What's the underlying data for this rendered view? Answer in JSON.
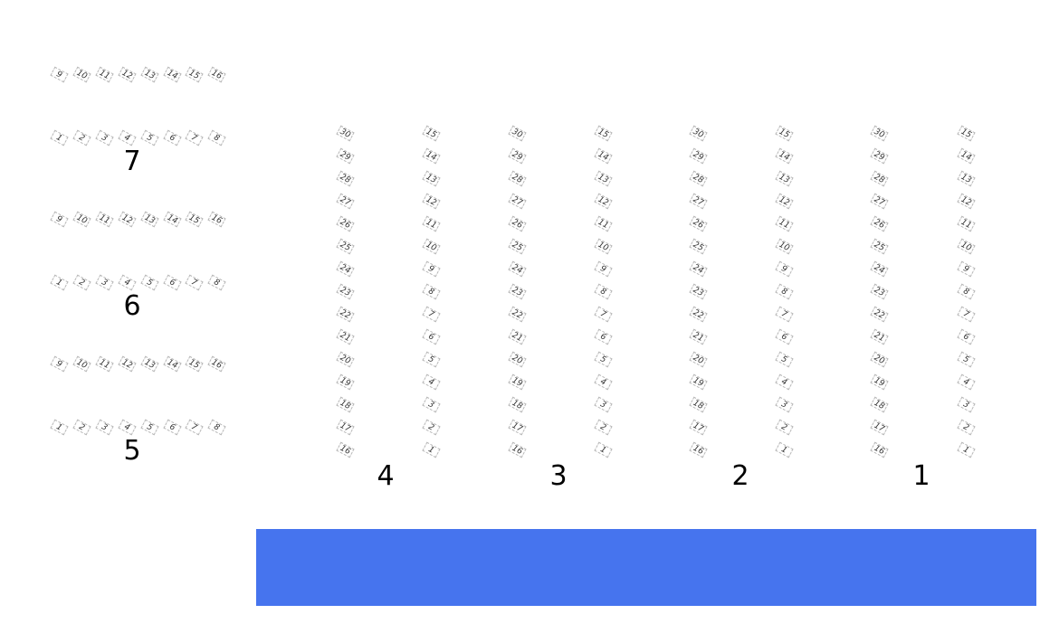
{
  "stage": {
    "color": "#4674EE"
  },
  "left_sections": [
    {
      "label": "7",
      "top_row": [
        "9",
        "10",
        "11",
        "12",
        "13",
        "14",
        "15",
        "16"
      ],
      "bottom_row": [
        "1",
        "2",
        "3",
        "4",
        "5",
        "6",
        "7",
        "8"
      ]
    },
    {
      "label": "6",
      "top_row": [
        "9",
        "10",
        "11",
        "12",
        "13",
        "14",
        "15",
        "16"
      ],
      "bottom_row": [
        "1",
        "2",
        "3",
        "4",
        "5",
        "6",
        "7",
        "8"
      ]
    },
    {
      "label": "5",
      "top_row": [
        "9",
        "10",
        "11",
        "12",
        "13",
        "14",
        "15",
        "16"
      ],
      "bottom_row": [
        "1",
        "2",
        "3",
        "4",
        "5",
        "6",
        "7",
        "8"
      ]
    }
  ],
  "right_sections": [
    {
      "label": "4",
      "left_column": [
        "30",
        "29",
        "28",
        "27",
        "26",
        "25",
        "24",
        "23",
        "22",
        "21",
        "20",
        "19",
        "18",
        "17",
        "16"
      ],
      "right_column": [
        "15",
        "14",
        "13",
        "12",
        "11",
        "10",
        "9",
        "8",
        "7",
        "6",
        "5",
        "4",
        "3",
        "2",
        "1"
      ]
    },
    {
      "label": "3",
      "left_column": [
        "30",
        "29",
        "28",
        "27",
        "26",
        "25",
        "24",
        "23",
        "22",
        "21",
        "20",
        "19",
        "18",
        "17",
        "16"
      ],
      "right_column": [
        "15",
        "14",
        "13",
        "12",
        "11",
        "10",
        "9",
        "8",
        "7",
        "6",
        "5",
        "4",
        "3",
        "2",
        "1"
      ]
    },
    {
      "label": "2",
      "left_column": [
        "30",
        "29",
        "28",
        "27",
        "26",
        "25",
        "24",
        "23",
        "22",
        "21",
        "20",
        "19",
        "18",
        "17",
        "16"
      ],
      "right_column": [
        "15",
        "14",
        "13",
        "12",
        "11",
        "10",
        "9",
        "8",
        "7",
        "6",
        "5",
        "4",
        "3",
        "2",
        "1"
      ]
    },
    {
      "label": "1",
      "left_column": [
        "30",
        "29",
        "28",
        "27",
        "26",
        "25",
        "24",
        "23",
        "22",
        "21",
        "20",
        "19",
        "18",
        "17",
        "16"
      ],
      "right_column": [
        "15",
        "14",
        "13",
        "12",
        "11",
        "10",
        "9",
        "8",
        "7",
        "6",
        "5",
        "4",
        "3",
        "2",
        "1"
      ]
    }
  ]
}
